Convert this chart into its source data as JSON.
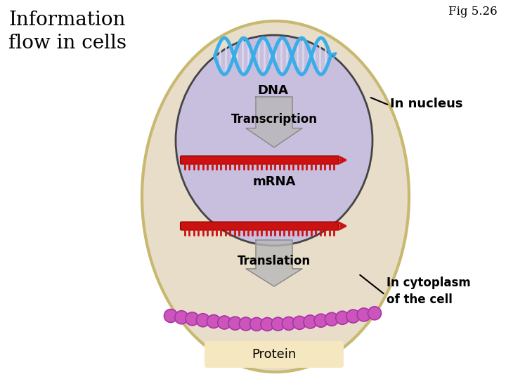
{
  "title_left": "Information\nflow in cells",
  "fig_label": "Fig 5.26",
  "bg_color": "#ffffff",
  "cell_outer_color": "#e8ddc8",
  "cell_outer_edge": "#c8b870",
  "nucleus_color": "#c8bedd",
  "nucleus_edge": "#444444",
  "mrna_color": "#cc1111",
  "protein_color": "#cc55bb",
  "protein_edge": "#aa33aa",
  "arrow_color": "#aaaaaa",
  "arrow_edge": "#888888",
  "label_dna": "DNA",
  "label_transcription": "Transcription",
  "label_mrna": "mRNA",
  "label_translation": "Translation",
  "label_protein": "Protein",
  "label_nucleus": "In nucleus",
  "label_cytoplasm": "In cytoplasm\nof the cell",
  "title_fontsize": 20,
  "label_fontsize": 12,
  "fig_fontsize": 12
}
